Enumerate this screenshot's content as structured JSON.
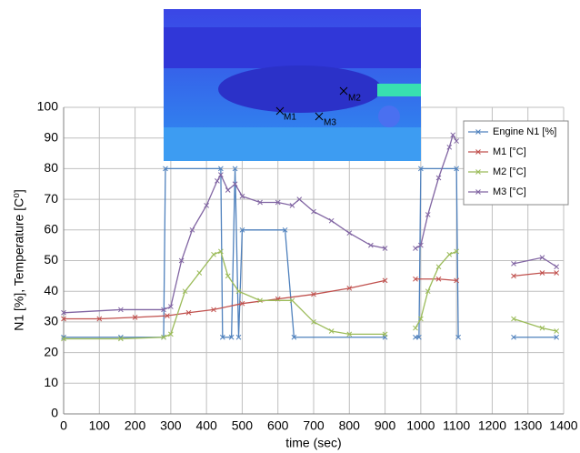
{
  "chart_data": {
    "type": "line",
    "x_label": "time (sec)",
    "y_label": "N1 [%], Temperature [C⁰]",
    "inset_labels": [
      "M1",
      "M2",
      "M3"
    ],
    "xlim": [
      0,
      1400
    ],
    "xticks": [
      0,
      100,
      200,
      300,
      400,
      500,
      600,
      700,
      800,
      900,
      1000,
      1100,
      1200,
      1300,
      1400
    ],
    "ylim": [
      0,
      100
    ],
    "yticks": [
      0,
      10,
      20,
      30,
      40,
      50,
      60,
      70,
      80,
      90,
      100
    ],
    "grid": true,
    "series": [
      {
        "name": "Engine N1 [%]",
        "color": "#4f81bd",
        "x": [
          0,
          160,
          280,
          285,
          440,
          445,
          470,
          480,
          490,
          500,
          620,
          645,
          900,
          950,
          985,
          995,
          1000,
          1100,
          1105,
          1180,
          1260,
          1380
        ],
        "values": [
          25,
          25,
          25,
          80,
          80,
          25,
          25,
          80,
          25,
          60,
          60,
          25,
          25,
          null,
          25,
          25,
          80,
          80,
          25,
          null,
          25,
          25
        ]
      },
      {
        "name": "M1 [°C]",
        "color": "#c0504d",
        "x": [
          0,
          100,
          200,
          290,
          350,
          420,
          500,
          600,
          700,
          800,
          900,
          950,
          985,
          1050,
          1100,
          1180,
          1260,
          1340,
          1380
        ],
        "values": [
          31,
          31,
          31.5,
          32,
          33,
          34,
          36,
          37.5,
          39,
          41,
          43.5,
          null,
          44,
          44,
          43.5,
          null,
          45,
          46,
          46
        ]
      },
      {
        "name": "M2 [°C]",
        "color": "#9bbb59",
        "x": [
          0,
          160,
          280,
          300,
          340,
          380,
          420,
          440,
          460,
          490,
          550,
          640,
          700,
          750,
          800,
          900,
          950,
          985,
          1000,
          1020,
          1050,
          1080,
          1100,
          1180,
          1260,
          1340,
          1380
        ],
        "values": [
          24.5,
          24.5,
          25,
          26,
          40,
          46,
          52,
          53,
          45,
          40,
          37,
          37,
          30,
          27,
          26,
          26,
          null,
          28,
          31,
          40,
          48,
          52,
          53,
          null,
          31,
          28,
          27
        ]
      },
      {
        "name": "M3 [°C]",
        "color": "#8064a2",
        "x": [
          0,
          160,
          280,
          300,
          330,
          360,
          400,
          430,
          440,
          460,
          480,
          500,
          550,
          600,
          640,
          660,
          700,
          750,
          800,
          860,
          900,
          950,
          985,
          1000,
          1020,
          1050,
          1080,
          1090,
          1100,
          1180,
          1260,
          1340,
          1380
        ],
        "values": [
          33,
          34,
          34,
          35,
          50,
          60,
          68,
          76,
          78,
          73,
          75,
          71,
          69,
          69,
          68,
          70,
          66,
          63,
          59,
          55,
          54,
          null,
          54,
          55,
          65,
          77,
          87,
          91,
          89,
          null,
          49,
          51,
          48
        ]
      }
    ]
  }
}
